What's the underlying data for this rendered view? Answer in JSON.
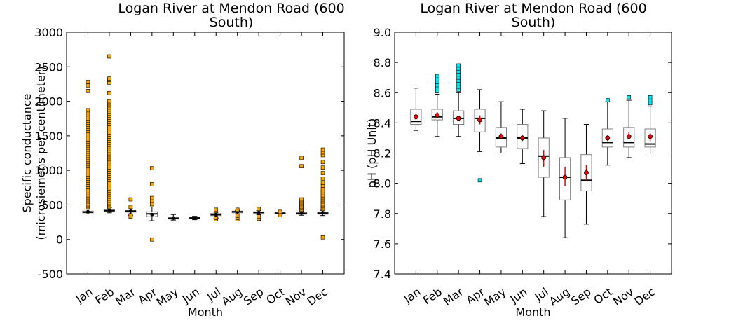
{
  "chart_data": [
    {
      "type": "box",
      "title": "Logan River at Mendon Road (600 South)",
      "title_lines": [
        "Logan River at Mendon Road (600",
        "South)"
      ],
      "xlabel": "Month",
      "ylabel": "Specific conductance (microsiemens per centimeter)",
      "ylabel_lines": [
        "Specific conductance",
        "(microsiemens per centimeter)"
      ],
      "ylim": [
        -500,
        3000
      ],
      "yticks": [
        -500,
        0,
        500,
        1000,
        1500,
        2000,
        2500,
        3000
      ],
      "categories": [
        "Jan",
        "Feb",
        "Mar",
        "Apr",
        "May",
        "Jun",
        "Jul",
        "Aug",
        "Sep",
        "Oct",
        "Nov",
        "Dec"
      ],
      "outlier_color": "#ffa500",
      "boxes": [
        {
          "q1": 385,
          "median": 395,
          "q3": 410,
          "wlo": 370,
          "whi": 440,
          "mean": 400,
          "outliers": [
            460,
            480,
            500,
            520,
            550,
            580,
            610,
            640,
            670,
            700,
            730,
            760,
            790,
            820,
            850,
            880,
            910,
            940,
            970,
            1000,
            1030,
            1060,
            1090,
            1120,
            1150,
            1180,
            1210,
            1240,
            1270,
            1300,
            1330,
            1360,
            1390,
            1420,
            1450,
            1480,
            1510,
            1540,
            1570,
            1600,
            1630,
            1660,
            1690,
            1720,
            1750,
            1780,
            1810,
            1840,
            1870,
            2150,
            2230,
            2280
          ]
        },
        {
          "q1": 400,
          "median": 415,
          "q3": 430,
          "wlo": 385,
          "whi": 460,
          "mean": 420,
          "outliers": [
            470,
            490,
            510,
            530,
            560,
            590,
            620,
            650,
            680,
            710,
            740,
            770,
            800,
            830,
            860,
            890,
            920,
            950,
            980,
            1010,
            1040,
            1070,
            1100,
            1130,
            1160,
            1190,
            1220,
            1250,
            1280,
            1310,
            1340,
            1370,
            1400,
            1430,
            1460,
            1490,
            1520,
            1550,
            1580,
            1610,
            1640,
            1670,
            1700,
            1730,
            1760,
            1790,
            1820,
            1850,
            1880,
            1910,
            1940,
            1970,
            2000,
            2120,
            2270,
            2310,
            2330,
            2650
          ]
        },
        {
          "q1": 395,
          "median": 410,
          "q3": 415,
          "wlo": 350,
          "whi": 440,
          "mean": 410,
          "outliers": [
            330,
            350,
            470,
            580
          ]
        },
        {
          "q1": 330,
          "median": 370,
          "q3": 400,
          "wlo": 270,
          "whi": 470,
          "mean": 360,
          "outliers": [
            0,
            510,
            560,
            600,
            800,
            1030
          ]
        },
        {
          "q1": 295,
          "median": 305,
          "q3": 320,
          "wlo": 280,
          "whi": 360,
          "mean": 310,
          "outliers": []
        },
        {
          "q1": 300,
          "median": 310,
          "q3": 320,
          "wlo": 285,
          "whi": 335,
          "mean": 310,
          "outliers": []
        },
        {
          "q1": 345,
          "median": 360,
          "q3": 375,
          "wlo": 310,
          "whi": 395,
          "mean": 360,
          "outliers": [
            290,
            310,
            410,
            430
          ]
        },
        {
          "q1": 385,
          "median": 400,
          "q3": 410,
          "wlo": 370,
          "whi": 420,
          "mean": 400,
          "outliers": [
            290,
            310,
            340,
            430
          ]
        },
        {
          "q1": 380,
          "median": 390,
          "q3": 400,
          "wlo": 360,
          "whi": 420,
          "mean": 390,
          "outliers": [
            290,
            300,
            320,
            330,
            440
          ]
        },
        {
          "q1": 370,
          "median": 380,
          "q3": 385,
          "wlo": 355,
          "whi": 395,
          "mean": 380,
          "outliers": [
            350,
            400
          ]
        },
        {
          "q1": 365,
          "median": 375,
          "q3": 390,
          "wlo": 350,
          "whi": 410,
          "mean": 380,
          "outliers": [
            430,
            450,
            470,
            490,
            510,
            530,
            550,
            580,
            1060,
            1180
          ]
        },
        {
          "q1": 365,
          "median": 380,
          "q3": 395,
          "wlo": 345,
          "whi": 420,
          "mean": 385,
          "outliers": [
            30,
            440,
            460,
            480,
            500,
            520,
            550,
            580,
            610,
            640,
            670,
            700,
            730,
            780,
            820,
            880,
            960,
            1040,
            1120,
            1220,
            1260,
            1300
          ]
        }
      ]
    },
    {
      "type": "box",
      "title": "Logan River at Mendon Road (600 South)",
      "title_lines": [
        "Logan River at Mendon Road (600",
        "South)"
      ],
      "xlabel": "Month",
      "ylabel": "pH  (pH Unit)",
      "ylabel_lines": [
        "pH  (pH Unit)"
      ],
      "ylim": [
        7.4,
        9.0
      ],
      "yticks": [
        7.4,
        7.6,
        7.8,
        8.0,
        8.2,
        8.4,
        8.6,
        8.8,
        9.0
      ],
      "categories": [
        "Jan",
        "Feb",
        "Mar",
        "Apr",
        "May",
        "Jun",
        "Jul",
        "Aug",
        "Sep",
        "Oct",
        "Nov",
        "Dec"
      ],
      "outlier_color": "#00e5ee",
      "boxes": [
        {
          "q1": 8.39,
          "median": 8.41,
          "q3": 8.49,
          "wlo": 8.35,
          "whi": 8.63,
          "mean": 8.44,
          "ci": [
            8.42,
            8.46
          ],
          "outliers": []
        },
        {
          "q1": 8.42,
          "median": 8.44,
          "q3": 8.49,
          "wlo": 8.31,
          "whi": 8.59,
          "mean": 8.45,
          "ci": [
            8.43,
            8.47
          ],
          "outliers": [
            8.61,
            8.63,
            8.65,
            8.67,
            8.69,
            8.71
          ]
        },
        {
          "q1": 8.39,
          "median": 8.43,
          "q3": 8.48,
          "wlo": 8.31,
          "whi": 8.6,
          "mean": 8.43,
          "ci": [
            8.42,
            8.44
          ],
          "outliers": [
            8.62,
            8.64,
            8.66,
            8.68,
            8.7,
            8.72,
            8.74,
            8.76,
            8.78
          ]
        },
        {
          "q1": 8.34,
          "median": 8.43,
          "q3": 8.49,
          "wlo": 8.21,
          "whi": 8.62,
          "mean": 8.42,
          "ci": [
            8.39,
            8.45
          ],
          "outliers": [
            8.02
          ]
        },
        {
          "q1": 8.24,
          "median": 8.3,
          "q3": 8.37,
          "wlo": 8.2,
          "whi": 8.54,
          "mean": 8.31,
          "ci": [
            8.29,
            8.33
          ],
          "outliers": []
        },
        {
          "q1": 8.23,
          "median": 8.3,
          "q3": 8.39,
          "wlo": 8.13,
          "whi": 8.49,
          "mean": 8.3,
          "ci": [
            8.28,
            8.32
          ],
          "outliers": []
        },
        {
          "q1": 8.04,
          "median": 8.18,
          "q3": 8.3,
          "wlo": 7.78,
          "whi": 8.48,
          "mean": 8.17,
          "ci": [
            8.11,
            8.22
          ],
          "outliers": []
        },
        {
          "q1": 7.89,
          "median": 8.04,
          "q3": 8.17,
          "wlo": 7.64,
          "whi": 8.43,
          "mean": 8.04,
          "ci": [
            7.98,
            8.11
          ],
          "outliers": []
        },
        {
          "q1": 7.95,
          "median": 8.02,
          "q3": 8.19,
          "wlo": 7.73,
          "whi": 8.39,
          "mean": 8.07,
          "ci": [
            8.02,
            8.12
          ],
          "outliers": []
        },
        {
          "q1": 8.24,
          "median": 8.27,
          "q3": 8.36,
          "wlo": 8.12,
          "whi": 8.54,
          "mean": 8.3,
          "ci": [
            8.28,
            8.32
          ],
          "outliers": [
            8.55
          ]
        },
        {
          "q1": 8.24,
          "median": 8.27,
          "q3": 8.37,
          "wlo": 8.17,
          "whi": 8.55,
          "mean": 8.31,
          "ci": [
            8.29,
            8.34
          ],
          "outliers": [
            8.57
          ]
        },
        {
          "q1": 8.24,
          "median": 8.26,
          "q3": 8.36,
          "wlo": 8.2,
          "whi": 8.51,
          "mean": 8.31,
          "ci": [
            8.28,
            8.33
          ],
          "outliers": [
            8.53,
            8.55,
            8.57
          ]
        }
      ]
    }
  ]
}
